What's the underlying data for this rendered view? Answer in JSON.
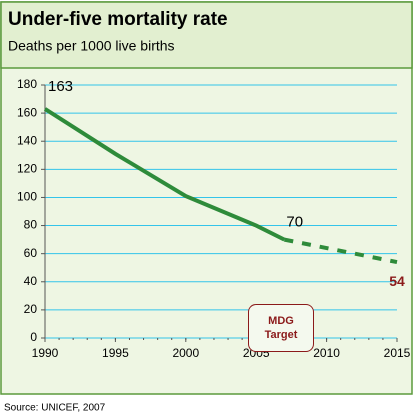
{
  "chart_data": {
    "type": "line",
    "title": "Under-five mortality rate",
    "subtitle": "Deaths per 1000 live births",
    "source": "Source: UNICEF, 2007",
    "annotation": "MDG Target",
    "series": [
      {
        "color": "#2e8b3a",
        "dashed": false,
        "x": [
          1990,
          1995,
          2000,
          2005,
          2007
        ],
        "values": [
          163,
          131,
          101,
          80,
          70
        ]
      },
      {
        "color": "#2e8b3a",
        "dashed": true,
        "x": [
          2007,
          2015
        ],
        "values": [
          70,
          54
        ]
      }
    ],
    "xlim": [
      1990,
      2015
    ],
    "xticks": [
      1990,
      1995,
      2000,
      2005,
      2010,
      2015
    ],
    "ylim": [
      0,
      180
    ],
    "yticks": [
      0,
      20,
      40,
      60,
      80,
      100,
      120,
      140,
      160,
      180
    ],
    "grid": true
  }
}
